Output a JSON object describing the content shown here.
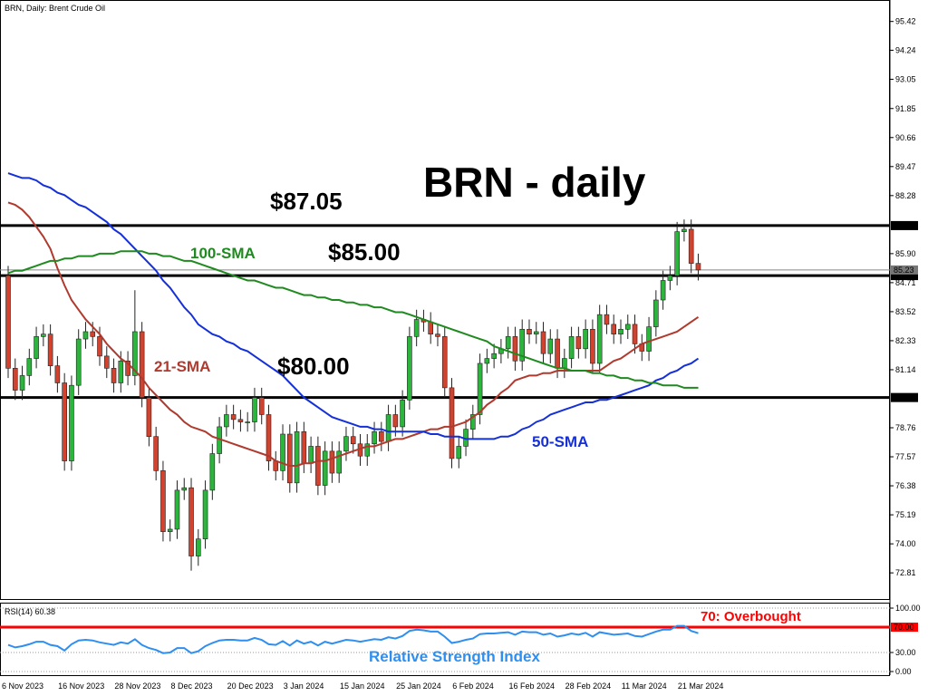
{
  "chart_data": [
    {
      "type": "candlestick",
      "title": "BRN, Daily:  Brent Crude Oil",
      "categories": [
        "6 Nov 2023",
        null,
        null,
        null,
        null,
        null,
        null,
        null,
        "16 Nov 2023",
        null,
        null,
        null,
        null,
        null,
        null,
        null,
        "28 Nov 2023",
        null,
        null,
        null,
        null,
        null,
        null,
        null,
        "8 Dec 2023",
        null,
        null,
        null,
        null,
        null,
        null,
        null,
        "20 Dec 2023",
        null,
        null,
        null,
        null,
        null,
        null,
        null,
        "3 Jan 2024",
        null,
        null,
        null,
        null,
        null,
        null,
        null,
        "15 Jan 2024",
        null,
        null,
        null,
        null,
        null,
        null,
        null,
        "25 Jan 2024",
        null,
        null,
        null,
        null,
        null,
        null,
        null,
        "6 Feb 2024",
        null,
        null,
        null,
        null,
        null,
        null,
        null,
        "16 Feb 2024",
        null,
        null,
        null,
        null,
        null,
        null,
        null,
        "28 Feb 2024",
        null,
        null,
        null,
        null,
        null,
        null,
        null,
        "11 Mar 2024",
        null,
        null,
        null,
        null,
        null,
        null,
        null,
        "21 Mar 2024",
        null,
        null
      ],
      "open": [
        85.0,
        81.2,
        80.3,
        80.9,
        81.6,
        82.5,
        82.6,
        81.3,
        80.6,
        77.4,
        80.5,
        82.4,
        82.7,
        82.5,
        81.7,
        81.2,
        80.6,
        81.5,
        80.9,
        82.7,
        80.0,
        78.4,
        77.0,
        74.5,
        74.6,
        76.2,
        76.3,
        73.5,
        74.2,
        76.2,
        77.7,
        78.8,
        79.3,
        79.1,
        79.0,
        79.0,
        80.0,
        79.3,
        77.4,
        77.0,
        78.5,
        76.5,
        78.6,
        77.3,
        78.0,
        76.4,
        77.8,
        76.9,
        77.8,
        78.4,
        78.1,
        77.6,
        78.1,
        78.6,
        78.2,
        79.3,
        78.8,
        79.9,
        82.5,
        83.2,
        83.1,
        82.6,
        82.5,
        80.4,
        77.5,
        78.0,
        78.7,
        79.3,
        81.4,
        81.6,
        81.8,
        82.0,
        82.5,
        81.5,
        82.8,
        82.6,
        82.7,
        81.8,
        82.4,
        81.2,
        81.6,
        82.5,
        82.0,
        82.8,
        81.4,
        83.4,
        83.0,
        82.6,
        82.8,
        83.0,
        82.2,
        81.9,
        82.9,
        84.0,
        84.8,
        85.0,
        86.8,
        86.9,
        85.5
      ],
      "high": [
        85.4,
        81.6,
        81.3,
        82.0,
        82.9,
        83.0,
        83.0,
        81.7,
        81.0,
        80.9,
        82.8,
        83.1,
        83.1,
        82.9,
        82.1,
        81.6,
        81.9,
        81.9,
        84.4,
        83.1,
        80.4,
        78.8,
        77.4,
        75.0,
        76.6,
        76.7,
        76.7,
        74.6,
        76.6,
        78.1,
        79.2,
        79.7,
        79.7,
        79.5,
        79.4,
        80.4,
        80.4,
        79.7,
        77.8,
        78.9,
        78.9,
        79.0,
        79.0,
        78.4,
        78.4,
        78.2,
        78.2,
        78.2,
        78.8,
        78.8,
        78.5,
        78.5,
        79.0,
        79.0,
        79.7,
        79.7,
        80.3,
        82.9,
        83.6,
        83.6,
        83.5,
        83.0,
        82.9,
        80.8,
        78.4,
        79.1,
        79.7,
        81.8,
        82.0,
        82.2,
        82.4,
        82.9,
        82.9,
        83.2,
        83.2,
        83.1,
        83.1,
        82.8,
        82.8,
        82.0,
        82.9,
        82.9,
        83.2,
        83.2,
        83.8,
        83.8,
        83.4,
        83.2,
        83.4,
        83.4,
        82.6,
        83.3,
        84.4,
        85.2,
        85.4,
        87.2,
        87.3,
        87.3,
        85.9
      ],
      "low": [
        80.8,
        79.9,
        79.9,
        80.5,
        81.2,
        82.1,
        80.9,
        80.2,
        77.0,
        77.0,
        80.1,
        82.0,
        82.1,
        81.3,
        80.8,
        80.2,
        80.2,
        80.5,
        80.5,
        79.6,
        78.0,
        76.6,
        74.1,
        74.1,
        74.2,
        75.8,
        72.9,
        73.1,
        73.8,
        75.8,
        77.3,
        78.4,
        78.7,
        78.6,
        78.6,
        78.6,
        78.9,
        77.0,
        76.6,
        76.6,
        76.1,
        76.1,
        76.9,
        76.9,
        76.0,
        76.0,
        76.5,
        76.5,
        77.4,
        77.7,
        77.2,
        77.2,
        77.7,
        77.8,
        77.8,
        78.4,
        78.4,
        79.5,
        82.1,
        82.7,
        82.2,
        82.1,
        80.0,
        77.1,
        77.1,
        77.6,
        78.3,
        78.9,
        81.0,
        81.2,
        81.4,
        81.6,
        81.1,
        81.1,
        82.2,
        82.2,
        81.4,
        81.4,
        80.8,
        80.8,
        81.2,
        81.6,
        81.6,
        81.0,
        81.0,
        82.6,
        82.2,
        82.2,
        82.4,
        81.8,
        81.5,
        81.5,
        82.5,
        83.6,
        84.4,
        84.6,
        86.4,
        85.1,
        84.8
      ],
      "close": [
        81.2,
        80.3,
        80.9,
        81.6,
        82.5,
        82.6,
        81.3,
        80.6,
        77.4,
        80.5,
        82.4,
        82.7,
        82.5,
        81.7,
        81.2,
        80.6,
        81.5,
        80.9,
        82.7,
        80.0,
        78.4,
        77.0,
        74.5,
        74.6,
        76.2,
        76.3,
        73.5,
        74.2,
        76.2,
        77.7,
        78.8,
        79.3,
        79.1,
        79.0,
        79.0,
        80.0,
        79.3,
        77.4,
        77.0,
        78.5,
        76.5,
        78.6,
        77.3,
        78.0,
        76.4,
        77.8,
        76.9,
        77.8,
        78.4,
        78.1,
        77.6,
        78.1,
        78.6,
        78.2,
        79.3,
        78.8,
        79.9,
        82.5,
        83.2,
        83.1,
        82.6,
        82.5,
        80.4,
        77.5,
        78.0,
        78.7,
        79.3,
        81.4,
        81.6,
        81.8,
        82.0,
        82.5,
        81.5,
        82.8,
        82.6,
        82.7,
        81.8,
        82.4,
        81.2,
        81.6,
        82.5,
        82.0,
        82.8,
        81.4,
        83.4,
        83.0,
        82.6,
        82.8,
        83.0,
        82.2,
        81.9,
        82.9,
        84.0,
        84.8,
        85.0,
        86.8,
        86.9,
        85.5,
        85.23
      ],
      "up_color": "#2bb53c",
      "down_color": "#d2432f",
      "series": [
        {
          "name": "21-SMA",
          "color": "#b03a2e",
          "values": [
            88.0,
            87.9,
            87.7,
            87.4,
            87.0,
            86.6,
            86.1,
            85.3,
            84.6,
            84.0,
            83.6,
            83.2,
            82.9,
            82.6,
            82.2,
            81.9,
            81.6,
            81.4,
            81.1,
            80.8,
            80.4,
            80.1,
            79.8,
            79.5,
            79.3,
            79.0,
            78.8,
            78.7,
            78.6,
            78.4,
            78.3,
            78.2,
            78.1,
            78.0,
            77.9,
            77.8,
            77.7,
            77.6,
            77.4,
            77.3,
            77.2,
            77.2,
            77.3,
            77.3,
            77.4,
            77.4,
            77.5,
            77.6,
            77.7,
            77.8,
            77.9,
            78.0,
            78.0,
            78.1,
            78.2,
            78.3,
            78.3,
            78.4,
            78.5,
            78.6,
            78.7,
            78.7,
            78.8,
            78.8,
            78.9,
            79.0,
            79.2,
            79.4,
            79.7,
            79.9,
            80.2,
            80.4,
            80.7,
            80.8,
            80.9,
            80.9,
            81.0,
            81.0,
            81.1,
            81.1,
            81.1,
            81.1,
            81.1,
            81.1,
            81.1,
            81.3,
            81.5,
            81.6,
            81.8,
            82.0,
            82.2,
            82.3,
            82.4,
            82.5,
            82.6,
            82.7,
            82.9,
            83.1,
            83.3
          ]
        },
        {
          "name": "50-SMA",
          "color": "#1530d8",
          "values": [
            89.2,
            89.1,
            89.0,
            89.0,
            88.9,
            88.7,
            88.6,
            88.4,
            88.3,
            88.1,
            87.9,
            87.8,
            87.6,
            87.4,
            87.2,
            86.9,
            86.7,
            86.4,
            86.1,
            85.8,
            85.5,
            85.2,
            84.8,
            84.5,
            84.1,
            83.7,
            83.4,
            83.0,
            82.8,
            82.6,
            82.5,
            82.3,
            82.2,
            82.0,
            81.9,
            81.7,
            81.5,
            81.3,
            81.1,
            80.9,
            80.6,
            80.3,
            80.0,
            79.8,
            79.6,
            79.4,
            79.2,
            79.1,
            79.0,
            78.9,
            78.8,
            78.8,
            78.7,
            78.7,
            78.6,
            78.6,
            78.6,
            78.6,
            78.6,
            78.6,
            78.5,
            78.5,
            78.4,
            78.4,
            78.4,
            78.3,
            78.3,
            78.3,
            78.3,
            78.3,
            78.4,
            78.4,
            78.5,
            78.7,
            78.8,
            79.0,
            79.1,
            79.3,
            79.4,
            79.5,
            79.6,
            79.7,
            79.8,
            79.8,
            79.9,
            79.9,
            80.0,
            80.1,
            80.2,
            80.3,
            80.4,
            80.5,
            80.7,
            80.8,
            81.0,
            81.1,
            81.3,
            81.4,
            81.6
          ]
        },
        {
          "name": "100-SMA",
          "color": "#1f8a1f",
          "values": [
            85.1,
            85.2,
            85.2,
            85.3,
            85.4,
            85.5,
            85.6,
            85.6,
            85.7,
            85.7,
            85.8,
            85.8,
            85.8,
            85.9,
            85.9,
            85.9,
            86.0,
            86.0,
            86.0,
            86.0,
            85.9,
            85.9,
            85.8,
            85.8,
            85.7,
            85.6,
            85.6,
            85.5,
            85.4,
            85.3,
            85.2,
            85.1,
            85.0,
            84.9,
            84.8,
            84.8,
            84.7,
            84.6,
            84.5,
            84.5,
            84.4,
            84.3,
            84.2,
            84.2,
            84.1,
            84.1,
            84.0,
            84.0,
            83.9,
            83.9,
            83.8,
            83.8,
            83.7,
            83.7,
            83.6,
            83.5,
            83.5,
            83.4,
            83.3,
            83.2,
            83.1,
            83.0,
            82.9,
            82.8,
            82.7,
            82.6,
            82.5,
            82.4,
            82.3,
            82.1,
            82.0,
            81.9,
            81.8,
            81.7,
            81.6,
            81.5,
            81.4,
            81.3,
            81.2,
            81.2,
            81.1,
            81.1,
            81.1,
            81.0,
            81.0,
            80.9,
            80.9,
            80.8,
            80.8,
            80.7,
            80.7,
            80.6,
            80.6,
            80.5,
            80.5,
            80.5,
            80.4,
            80.4,
            80.4
          ]
        }
      ],
      "ylim": [
        71.7,
        96.3
      ],
      "yticks": [
        95.42,
        94.24,
        93.05,
        91.85,
        90.66,
        89.47,
        88.28,
        {
          "value": 85.9,
          "label": "85.90"
        },
        84.71,
        83.52,
        82.33,
        81.14,
        78.76,
        77.57,
        76.38,
        75.19,
        {
          "value": 74,
          "label": "74.00"
        },
        72.81
      ],
      "levels": [
        87.05,
        {
          "value": 85,
          "label": "85.00"
        },
        {
          "value": 80,
          "label": "80.00"
        }
      ],
      "level_color": "#000000",
      "current_price": 85.23,
      "annotations": [
        "BRN - daily",
        "$87.05",
        "$85.00",
        "$80.00"
      ]
    },
    {
      "type": "line",
      "title": "RSI(14) 60.38",
      "series": [
        {
          "name": "Relative Strength Index",
          "color": "#2e8ff0",
          "values": [
            42,
            38,
            40,
            43,
            47,
            47,
            42,
            40,
            33,
            43,
            49,
            50,
            49,
            46,
            44,
            42,
            46,
            44,
            51,
            42,
            37,
            34,
            29,
            30,
            37,
            37,
            29,
            32,
            40,
            45,
            49,
            50,
            50,
            49,
            49,
            53,
            50,
            43,
            42,
            48,
            41,
            49,
            44,
            47,
            41,
            47,
            44,
            47,
            50,
            49,
            47,
            49,
            51,
            50,
            54,
            52,
            56,
            64,
            66,
            65,
            63,
            63,
            55,
            45,
            47,
            50,
            52,
            59,
            60,
            60,
            61,
            62,
            58,
            63,
            62,
            62,
            58,
            60,
            55,
            57,
            60,
            58,
            61,
            55,
            62,
            60,
            58,
            59,
            60,
            56,
            55,
            59,
            63,
            66,
            66,
            72,
            72,
            64,
            60.38
          ]
        }
      ],
      "ylim": [
        -5.7,
        108.6
      ],
      "yticks": [
        {
          "value": 100,
          "label": "100.00"
        },
        {
          "value": 30,
          "label": "30.00"
        },
        {
          "value": 0,
          "label": "0.00"
        }
      ],
      "grid": true,
      "levels": [
        {
          "value": 70,
          "label": "70.00"
        }
      ],
      "level_color": "#ff0000",
      "annotations": [
        "70: Overbought"
      ]
    }
  ]
}
